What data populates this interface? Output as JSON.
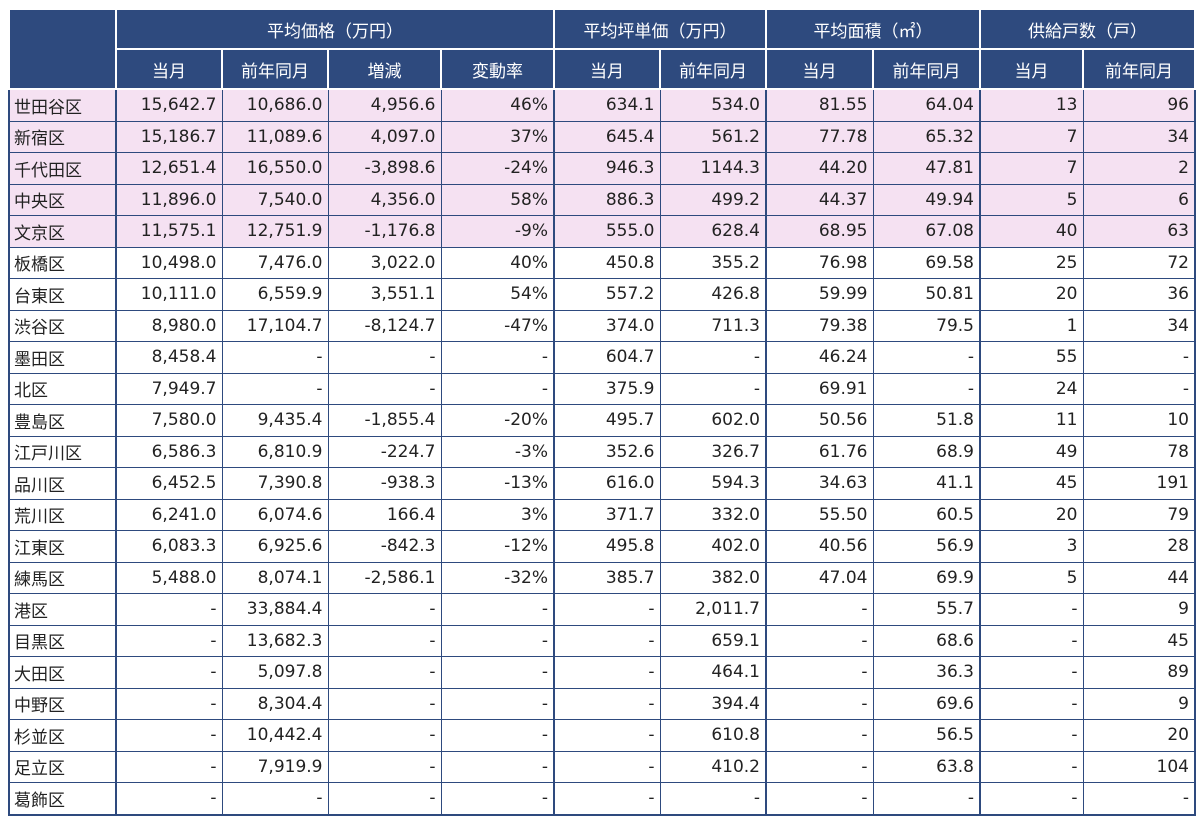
{
  "header": {
    "groups": [
      {
        "label": "平均価格（万円）",
        "span": 4
      },
      {
        "label": "平均坪単価（万円）",
        "span": 2
      },
      {
        "label": "平均面積（㎡）",
        "span": 2
      },
      {
        "label": "供給戸数（戸）",
        "span": 2
      }
    ],
    "subcolumns": [
      "当月",
      "前年同月",
      "増減",
      "変動率",
      "当月",
      "前年同月",
      "当月",
      "前年同月",
      "当月",
      "前年同月"
    ]
  },
  "highlight_color": "#f5e1f2",
  "header_color": "#2e4a7e",
  "rows": [
    {
      "ward": "世田谷区",
      "highlight": true,
      "cells": [
        "15,642.7",
        "10,686.0",
        "4,956.6",
        "46%",
        "634.1",
        "534.0",
        "81.55",
        "64.04",
        "13",
        "96"
      ]
    },
    {
      "ward": "新宿区",
      "highlight": true,
      "cells": [
        "15,186.7",
        "11,089.6",
        "4,097.0",
        "37%",
        "645.4",
        "561.2",
        "77.78",
        "65.32",
        "7",
        "34"
      ]
    },
    {
      "ward": "千代田区",
      "highlight": true,
      "cells": [
        "12,651.4",
        "16,550.0",
        "-3,898.6",
        "-24%",
        "946.3",
        "1144.3",
        "44.20",
        "47.81",
        "7",
        "2"
      ]
    },
    {
      "ward": "中央区",
      "highlight": true,
      "cells": [
        "11,896.0",
        "7,540.0",
        "4,356.0",
        "58%",
        "886.3",
        "499.2",
        "44.37",
        "49.94",
        "5",
        "6"
      ]
    },
    {
      "ward": "文京区",
      "highlight": true,
      "cells": [
        "11,575.1",
        "12,751.9",
        "-1,176.8",
        "-9%",
        "555.0",
        "628.4",
        "68.95",
        "67.08",
        "40",
        "63"
      ]
    },
    {
      "ward": "板橋区",
      "highlight": false,
      "cells": [
        "10,498.0",
        "7,476.0",
        "3,022.0",
        "40%",
        "450.8",
        "355.2",
        "76.98",
        "69.58",
        "25",
        "72"
      ]
    },
    {
      "ward": "台東区",
      "highlight": false,
      "cells": [
        "10,111.0",
        "6,559.9",
        "3,551.1",
        "54%",
        "557.2",
        "426.8",
        "59.99",
        "50.81",
        "20",
        "36"
      ]
    },
    {
      "ward": "渋谷区",
      "highlight": false,
      "cells": [
        "8,980.0",
        "17,104.7",
        "-8,124.7",
        "-47%",
        "374.0",
        "711.3",
        "79.38",
        "79.5",
        "1",
        "34"
      ]
    },
    {
      "ward": "墨田区",
      "highlight": false,
      "cells": [
        "8,458.4",
        "-",
        "-",
        "-",
        "604.7",
        "-",
        "46.24",
        "-",
        "55",
        "-"
      ]
    },
    {
      "ward": "北区",
      "highlight": false,
      "cells": [
        "7,949.7",
        "-",
        "-",
        "-",
        "375.9",
        "-",
        "69.91",
        "-",
        "24",
        "-"
      ]
    },
    {
      "ward": "豊島区",
      "highlight": false,
      "cells": [
        "7,580.0",
        "9,435.4",
        "-1,855.4",
        "-20%",
        "495.7",
        "602.0",
        "50.56",
        "51.8",
        "11",
        "10"
      ]
    },
    {
      "ward": "江戸川区",
      "highlight": false,
      "cells": [
        "6,586.3",
        "6,810.9",
        "-224.7",
        "-3%",
        "352.6",
        "326.7",
        "61.76",
        "68.9",
        "49",
        "78"
      ]
    },
    {
      "ward": "品川区",
      "highlight": false,
      "cells": [
        "6,452.5",
        "7,390.8",
        "-938.3",
        "-13%",
        "616.0",
        "594.3",
        "34.63",
        "41.1",
        "45",
        "191"
      ]
    },
    {
      "ward": "荒川区",
      "highlight": false,
      "cells": [
        "6,241.0",
        "6,074.6",
        "166.4",
        "3%",
        "371.7",
        "332.0",
        "55.50",
        "60.5",
        "20",
        "79"
      ]
    },
    {
      "ward": "江東区",
      "highlight": false,
      "cells": [
        "6,083.3",
        "6,925.6",
        "-842.3",
        "-12%",
        "495.8",
        "402.0",
        "40.56",
        "56.9",
        "3",
        "28"
      ]
    },
    {
      "ward": "練馬区",
      "highlight": false,
      "cells": [
        "5,488.0",
        "8,074.1",
        "-2,586.1",
        "-32%",
        "385.7",
        "382.0",
        "47.04",
        "69.9",
        "5",
        "44"
      ]
    },
    {
      "ward": "港区",
      "highlight": false,
      "cells": [
        "-",
        "33,884.4",
        "-",
        "-",
        "-",
        "2,011.7",
        "-",
        "55.7",
        "-",
        "9"
      ]
    },
    {
      "ward": "目黒区",
      "highlight": false,
      "cells": [
        "-",
        "13,682.3",
        "-",
        "-",
        "-",
        "659.1",
        "-",
        "68.6",
        "-",
        "45"
      ]
    },
    {
      "ward": "大田区",
      "highlight": false,
      "cells": [
        "-",
        "5,097.8",
        "-",
        "-",
        "-",
        "464.1",
        "-",
        "36.3",
        "-",
        "89"
      ]
    },
    {
      "ward": "中野区",
      "highlight": false,
      "cells": [
        "-",
        "8,304.4",
        "-",
        "-",
        "-",
        "394.4",
        "-",
        "69.6",
        "-",
        "9"
      ]
    },
    {
      "ward": "杉並区",
      "highlight": false,
      "cells": [
        "-",
        "10,442.4",
        "-",
        "-",
        "-",
        "610.8",
        "-",
        "56.5",
        "-",
        "20"
      ]
    },
    {
      "ward": "足立区",
      "highlight": false,
      "cells": [
        "-",
        "7,919.9",
        "-",
        "-",
        "-",
        "410.2",
        "-",
        "63.8",
        "-",
        "104"
      ]
    },
    {
      "ward": "葛飾区",
      "highlight": false,
      "cells": [
        "-",
        "-",
        "-",
        "-",
        "-",
        "-",
        "-",
        "-",
        "-",
        "-"
      ]
    }
  ]
}
